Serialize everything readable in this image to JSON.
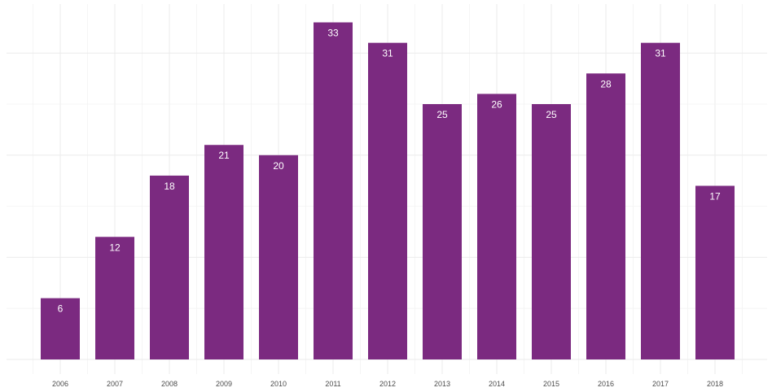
{
  "chart_data": {
    "type": "bar",
    "categories": [
      "2006",
      "2007",
      "2008",
      "2009",
      "2010",
      "2011",
      "2012",
      "2013",
      "2014",
      "2015",
      "2016",
      "2017",
      "2018"
    ],
    "values": [
      6,
      12,
      18,
      21,
      20,
      33,
      31,
      25,
      26,
      25,
      28,
      31,
      17
    ],
    "title": "",
    "xlabel": "",
    "ylabel": "",
    "ylim": [
      0,
      35
    ],
    "grid": true,
    "legend": "none",
    "bar_color": "#7b2a80",
    "data_labels": true,
    "y_tick_labels_shown": false
  }
}
